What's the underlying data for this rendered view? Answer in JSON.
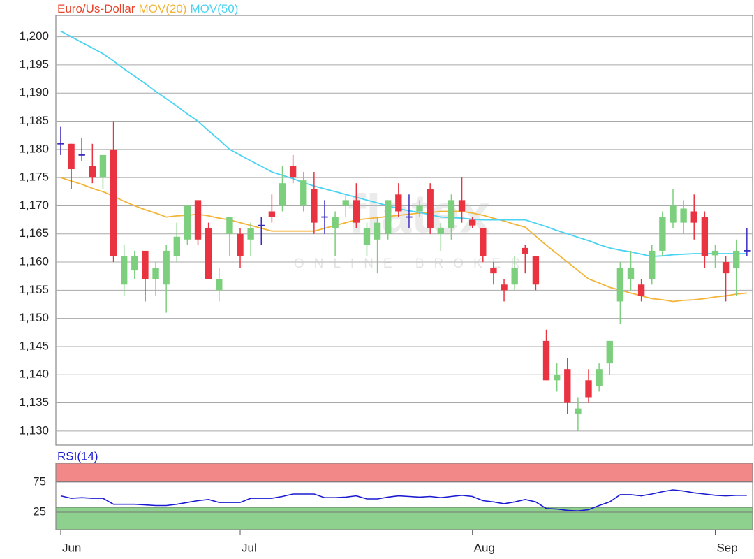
{
  "chart_data": [
    {
      "type": "candlestick",
      "categories": [
        "Jun",
        null,
        null,
        null,
        null,
        null,
        null,
        null,
        null,
        null,
        null,
        null,
        null,
        null,
        null,
        null,
        null,
        "Jul",
        null,
        null,
        null,
        null,
        null,
        null,
        null,
        null,
        null,
        null,
        null,
        null,
        null,
        null,
        null,
        null,
        null,
        null,
        null,
        null,
        null,
        "Aug",
        null,
        null,
        null,
        null,
        null,
        null,
        null,
        null,
        null,
        null,
        null,
        null,
        null,
        null,
        null,
        null,
        null,
        null,
        null,
        null,
        null,
        null,
        "Sep",
        null,
        null,
        null
      ],
      "series": [
        {
          "name": "Euro/Us-Dollar",
          "color": "#e8452c",
          "up_color": "#7ccf7c",
          "down_color": "#ea3340",
          "doji_color": "#3a2cc0",
          "open": [
            1.181,
            1.181,
            1.179,
            1.177,
            1.175,
            1.18,
            1.156,
            1.1585,
            1.162,
            1.157,
            1.156,
            1.161,
            1.164,
            1.171,
            1.166,
            1.155,
            1.165,
            1.165,
            1.164,
            1.1665,
            1.169,
            1.17,
            1.177,
            1.17,
            1.173,
            1.168,
            1.166,
            1.17,
            1.171,
            1.163,
            1.164,
            1.165,
            1.172,
            1.168,
            1.169,
            1.173,
            1.165,
            1.166,
            1.171,
            1.1675,
            1.166,
            1.159,
            1.156,
            1.156,
            1.1625,
            1.161,
            1.146,
            1.139,
            1.141,
            1.133,
            1.139,
            1.138,
            1.142,
            1.153,
            1.157,
            1.156,
            1.157,
            1.162,
            1.167,
            1.167,
            1.169,
            1.168,
            1.1612,
            1.16,
            1.159,
            1.162
          ],
          "high": [
            1.184,
            1.181,
            1.182,
            1.181,
            1.179,
            1.185,
            1.163,
            1.162,
            1.162,
            1.16,
            1.163,
            1.167,
            1.17,
            1.171,
            1.167,
            1.159,
            1.168,
            1.166,
            1.167,
            1.168,
            1.172,
            1.177,
            1.179,
            1.176,
            1.176,
            1.171,
            1.169,
            1.172,
            1.174,
            1.167,
            1.168,
            1.171,
            1.174,
            1.172,
            1.171,
            1.174,
            1.167,
            1.172,
            1.175,
            1.168,
            1.166,
            1.16,
            1.157,
            1.161,
            1.163,
            1.161,
            1.148,
            1.142,
            1.143,
            1.136,
            1.141,
            1.142,
            1.146,
            1.16,
            1.162,
            1.157,
            1.163,
            1.169,
            1.173,
            1.171,
            1.172,
            1.169,
            1.163,
            1.161,
            1.164,
            1.166
          ],
          "low": [
            1.179,
            1.173,
            1.178,
            1.174,
            1.173,
            1.16,
            1.154,
            1.157,
            1.153,
            1.154,
            1.151,
            1.16,
            1.163,
            1.163,
            1.157,
            1.153,
            1.161,
            1.159,
            1.161,
            1.163,
            1.167,
            1.169,
            1.174,
            1.169,
            1.165,
            1.165,
            1.161,
            1.168,
            1.166,
            1.161,
            1.158,
            1.164,
            1.168,
            1.166,
            1.168,
            1.165,
            1.162,
            1.164,
            1.167,
            1.166,
            1.16,
            1.156,
            1.153,
            1.155,
            1.158,
            1.155,
            1.139,
            1.137,
            1.133,
            1.13,
            1.135,
            1.137,
            1.14,
            1.149,
            1.155,
            1.153,
            1.156,
            1.161,
            1.166,
            1.165,
            1.164,
            1.159,
            1.159,
            1.153,
            1.154,
            1.161
          ],
          "close": [
            1.181,
            1.1765,
            1.179,
            1.175,
            1.179,
            1.161,
            1.161,
            1.161,
            1.157,
            1.159,
            1.162,
            1.1645,
            1.17,
            1.164,
            1.157,
            1.157,
            1.168,
            1.161,
            1.166,
            1.1665,
            1.168,
            1.174,
            1.175,
            1.1745,
            1.167,
            1.168,
            1.168,
            1.171,
            1.167,
            1.166,
            1.167,
            1.171,
            1.169,
            1.168,
            1.17,
            1.166,
            1.166,
            1.171,
            1.169,
            1.1665,
            1.161,
            1.158,
            1.155,
            1.159,
            1.1615,
            1.156,
            1.139,
            1.14,
            1.135,
            1.134,
            1.136,
            1.141,
            1.146,
            1.159,
            1.159,
            1.154,
            1.162,
            1.168,
            1.17,
            1.1695,
            1.167,
            1.161,
            1.162,
            1.158,
            1.162,
            1.162
          ]
        },
        {
          "name": "MOV(20)",
          "color": "#f3b437",
          "values": [
            1.175,
            1.1744,
            1.1738,
            1.1731,
            1.1725,
            1.1717,
            1.1708,
            1.17,
            1.1693,
            1.1687,
            1.168,
            1.1682,
            1.1683,
            1.1685,
            1.1682,
            1.1678,
            1.1675,
            1.167,
            1.1665,
            1.166,
            1.1655,
            1.1655,
            1.1655,
            1.1655,
            1.1655,
            1.166,
            1.1665,
            1.167,
            1.1675,
            1.1677,
            1.1679,
            1.1681,
            1.1683,
            1.1685,
            1.1687,
            1.1688,
            1.169,
            1.169,
            1.169,
            1.1687,
            1.1683,
            1.1678,
            1.1673,
            1.1667,
            1.1662,
            1.1646,
            1.163,
            1.1615,
            1.16,
            1.1585,
            1.157,
            1.1563,
            1.1555,
            1.155,
            1.1545,
            1.154,
            1.1535,
            1.1533,
            1.153,
            1.1532,
            1.1533,
            1.1535,
            1.1538,
            1.154,
            1.1543,
            1.1545
          ]
        },
        {
          "name": "MOV(50)",
          "color": "#4ad3f3",
          "values": [
            1.201,
            1.2,
            1.199,
            1.198,
            1.197,
            1.1957,
            1.1943,
            1.193,
            1.1917,
            1.1903,
            1.189,
            1.1877,
            1.1863,
            1.185,
            1.1833,
            1.1817,
            1.18,
            1.179,
            1.178,
            1.177,
            1.176,
            1.1754,
            1.1748,
            1.1741,
            1.1735,
            1.173,
            1.1725,
            1.172,
            1.1715,
            1.171,
            1.1705,
            1.17,
            1.1695,
            1.1691,
            1.1688,
            1.1684,
            1.168,
            1.1679,
            1.1678,
            1.1676,
            1.1675,
            1.1675,
            1.1675,
            1.1675,
            1.1675,
            1.1669,
            1.1663,
            1.1656,
            1.165,
            1.1644,
            1.1638,
            1.1631,
            1.1625,
            1.1621,
            1.1618,
            1.1614,
            1.161,
            1.1611,
            1.1613,
            1.1614,
            1.1615,
            1.1615,
            1.1615,
            1.1615,
            1.1615,
            1.1615
          ]
        }
      ],
      "ylim": [
        1.1275,
        1.2038
      ],
      "yticks": [
        {
          "value": 1.13,
          "label": "1,130"
        },
        {
          "value": 1.135,
          "label": "1,135"
        },
        {
          "value": 1.14,
          "label": "1,140"
        },
        {
          "value": 1.145,
          "label": "1,145"
        },
        {
          "value": 1.15,
          "label": "1,150"
        },
        {
          "value": 1.155,
          "label": "1,155"
        },
        {
          "value": 1.16,
          "label": "1,160"
        },
        {
          "value": 1.165,
          "label": "1,165"
        },
        {
          "value": 1.17,
          "label": "1,170"
        },
        {
          "value": 1.175,
          "label": "1,175"
        },
        {
          "value": 1.18,
          "label": "1,180"
        },
        {
          "value": 1.185,
          "label": "1,185"
        },
        {
          "value": 1.19,
          "label": "1,190"
        },
        {
          "value": 1.195,
          "label": "1,195"
        },
        {
          "value": 1.2,
          "label": "1,200"
        }
      ],
      "grid": true,
      "watermark": {
        "logo": "flatex",
        "tagline": "ONLINE BROKER"
      }
    },
    {
      "type": "line",
      "title": "RSI(14)",
      "color": "#1a1ad0",
      "values": [
        52,
        48,
        49,
        48,
        48,
        38,
        38,
        38,
        37,
        36,
        36,
        38,
        41,
        44,
        46,
        41,
        41,
        41,
        48,
        48,
        48,
        51,
        55,
        55,
        55,
        49,
        49,
        50,
        52,
        47,
        47,
        50,
        52,
        51,
        50,
        51,
        49,
        51,
        53,
        51,
        44,
        42,
        39,
        42,
        46,
        42,
        31,
        30,
        28,
        27,
        29,
        36,
        42,
        54,
        54,
        52,
        55,
        59,
        62,
        60,
        57,
        55,
        53,
        52,
        53,
        53
      ],
      "ylim": [
        -4,
        106
      ],
      "yticks": [
        25,
        75
      ],
      "bands": [
        {
          "from": 75,
          "to": 106,
          "color": "#f28888"
        },
        {
          "from": -4,
          "to": 33,
          "color": "#8ed18e"
        }
      ],
      "grid": true
    }
  ]
}
